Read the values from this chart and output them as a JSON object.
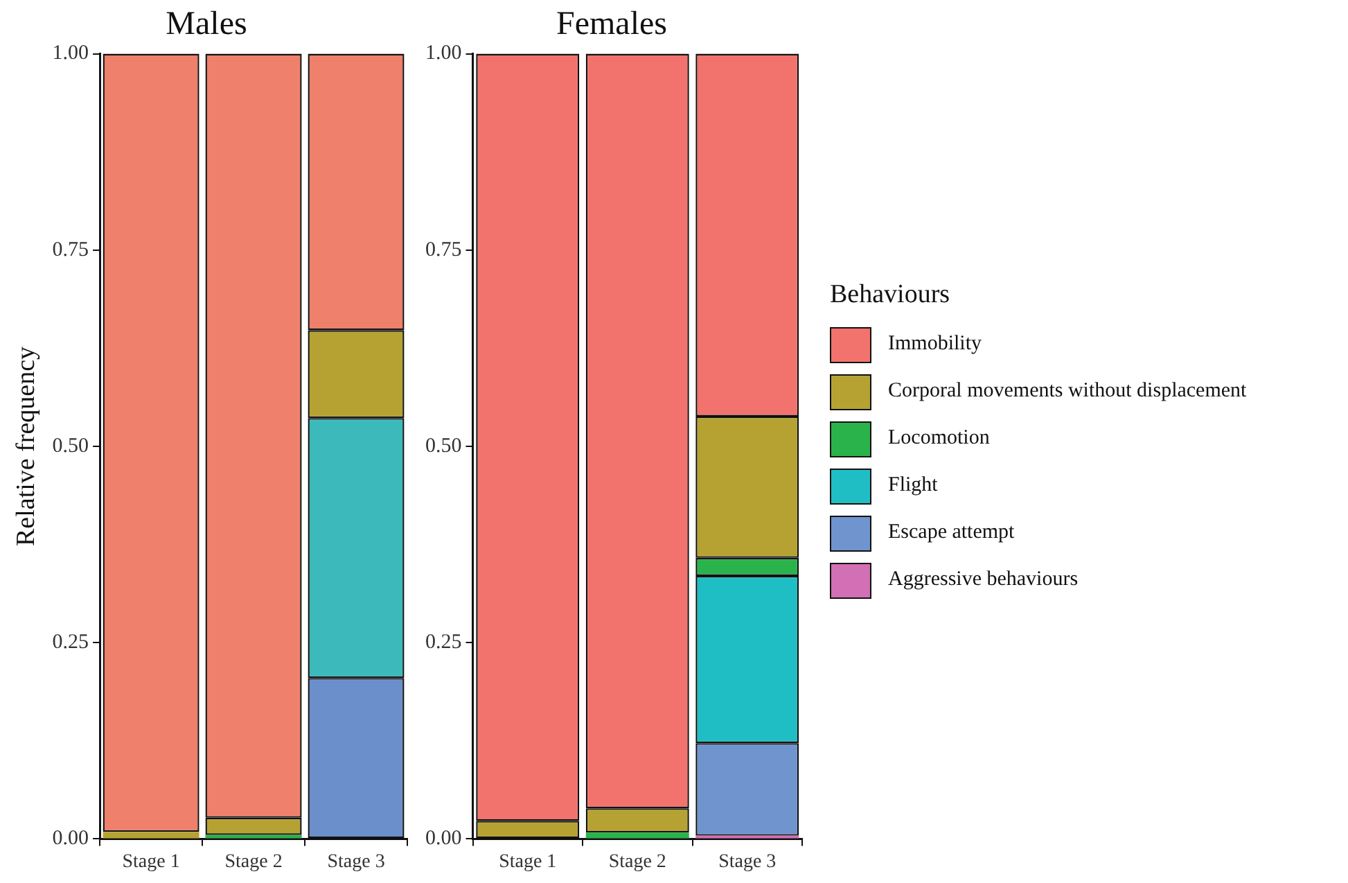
{
  "chart_data": [
    {
      "type": "bar",
      "title": "Males",
      "ylabel": "Relative frequency",
      "stacked": true,
      "categories": [
        "Stage 1",
        "Stage 2",
        "Stage 3"
      ],
      "ylim": [
        0,
        1
      ],
      "yticks": [
        {
          "value": 0,
          "label": "0.00"
        },
        {
          "value": 0.25,
          "label": "0.25"
        },
        {
          "value": 0.5,
          "label": "0.50"
        },
        {
          "value": 0.75,
          "label": "0.75"
        },
        {
          "value": 1,
          "label": "1.00"
        }
      ],
      "grid": false,
      "legend": false,
      "series": [
        {
          "color": "#d36fb4",
          "values": [
            0,
            0,
            0
          ]
        },
        {
          "color": "#6b8fcb",
          "values": [
            0,
            0,
            0.205
          ]
        },
        {
          "color": "#3bb9bb",
          "values": [
            0,
            0,
            0.331
          ]
        },
        {
          "color": "#2ab24b",
          "values": [
            0,
            0.005,
            0
          ]
        },
        {
          "color": "#b5a233",
          "values": [
            0.009,
            0.022,
            0.112
          ]
        },
        {
          "color": "#ef806b",
          "values": [
            0.991,
            0.973,
            0.352
          ]
        }
      ]
    },
    {
      "type": "bar",
      "title": "Females",
      "legend_title": "Behaviours",
      "stacked": true,
      "categories": [
        "Stage 1",
        "Stage 2",
        "Stage 3"
      ],
      "ylim": [
        0,
        1
      ],
      "yticks": [
        {
          "value": 0,
          "label": "0.00"
        },
        {
          "value": 0.25,
          "label": "0.25"
        },
        {
          "value": 0.5,
          "label": "0.50"
        },
        {
          "value": 0.75,
          "label": "0.75"
        },
        {
          "value": 1,
          "label": "1.00"
        }
      ],
      "grid": false,
      "legend": "right",
      "series": [
        {
          "name": "Aggressive behaviours",
          "color": "#d36fb4",
          "values": [
            0,
            0,
            0.004
          ]
        },
        {
          "name": "Escape attempt",
          "color": "#7094ce",
          "values": [
            0,
            0,
            0.118
          ]
        },
        {
          "name": "Flight",
          "color": "#1fbec4",
          "values": [
            0,
            0,
            0.213
          ]
        },
        {
          "name": "Locomotion",
          "color": "#2ab24b",
          "values": [
            0,
            0.008,
            0.023
          ]
        },
        {
          "name": "Corporal movements without displacement",
          "color": "#b5a233",
          "values": [
            0.023,
            0.031,
            0.18
          ]
        },
        {
          "name": "Immobility",
          "color": "#f2736d",
          "values": [
            0.977,
            0.961,
            0.462
          ]
        }
      ]
    }
  ]
}
